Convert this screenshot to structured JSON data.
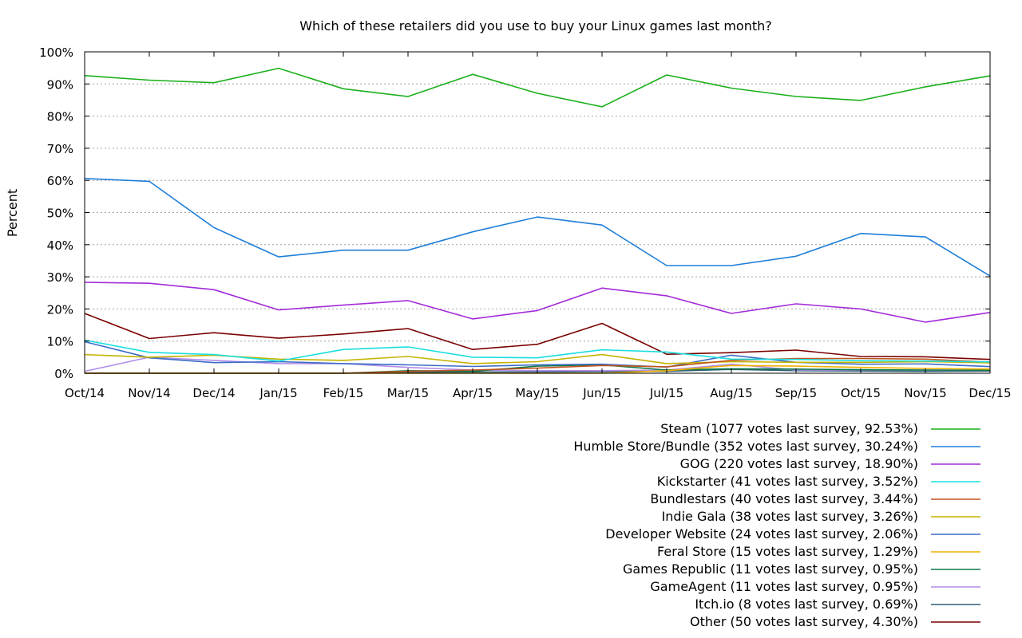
{
  "chart_data": {
    "type": "line",
    "title": "Which of these retailers did you use to buy your Linux games last month?",
    "xlabel": "",
    "ylabel": "Percent",
    "ylim": [
      0,
      100
    ],
    "ytick_values": [
      0,
      10,
      20,
      30,
      40,
      50,
      60,
      70,
      80,
      90,
      100
    ],
    "ytick_labels": [
      "0%",
      "10%",
      "20%",
      "30%",
      "40%",
      "50%",
      "60%",
      "70%",
      "80%",
      "90%",
      "100%"
    ],
    "categories": [
      "Oct/14",
      "Nov/14",
      "Dec/14",
      "Jan/15",
      "Feb/15",
      "Mar/15",
      "Apr/15",
      "May/15",
      "Jun/15",
      "Jul/15",
      "Aug/15",
      "Sep/15",
      "Oct/15",
      "Nov/15",
      "Dec/15"
    ],
    "grid": true,
    "legend_position": "bottom-right",
    "series": [
      {
        "name": "Steam (1077 votes last survey, 92.53%)",
        "color": "#1bb01b",
        "values": [
          92.6,
          91.2,
          90.4,
          94.9,
          88.5,
          86.1,
          93.0,
          87.1,
          82.9,
          92.8,
          88.7,
          86.1,
          84.9,
          89.1,
          92.53
        ]
      },
      {
        "name": "Humble Store/Bundle (352 votes last survey, 30.24%)",
        "color": "#1f7fd9",
        "values": [
          60.6,
          59.7,
          45.3,
          36.2,
          38.3,
          38.3,
          44.0,
          48.6,
          46.1,
          33.5,
          33.5,
          36.4,
          43.5,
          42.4,
          30.24
        ]
      },
      {
        "name": "GOG (220 votes last survey, 18.90%)",
        "color": "#a32bd9",
        "values": [
          28.3,
          28.0,
          26.0,
          19.7,
          21.2,
          22.6,
          16.9,
          19.5,
          26.5,
          24.1,
          18.6,
          21.6,
          20.0,
          15.9,
          18.9
        ]
      },
      {
        "name": "Kickstarter (41 votes last survey, 3.52%)",
        "color": "#1adede",
        "values": [
          10.3,
          6.5,
          5.8,
          3.8,
          7.4,
          8.2,
          5.0,
          4.8,
          7.3,
          6.6,
          4.4,
          4.3,
          3.9,
          3.8,
          3.52
        ]
      },
      {
        "name": "Bundlestars (40 votes last survey, 3.44%)",
        "color": "#c2541e",
        "values": [
          0,
          0,
          0,
          0,
          0,
          0.6,
          1.0,
          1.6,
          2.4,
          2.0,
          4.0,
          4.6,
          4.6,
          4.4,
          3.44
        ]
      },
      {
        "name": "Indie Gala (38 votes last survey, 3.26%)",
        "color": "#c4b400",
        "values": [
          5.8,
          5.0,
          5.6,
          4.4,
          4.0,
          5.2,
          3.0,
          3.6,
          5.8,
          3.0,
          3.6,
          3.4,
          3.4,
          3.6,
          3.26
        ]
      },
      {
        "name": "Developer Website (24 votes last survey, 2.06%)",
        "color": "#3b6dc7",
        "values": [
          9.8,
          4.8,
          3.3,
          3.6,
          3.0,
          2.6,
          2.1,
          2.6,
          2.8,
          1.9,
          5.6,
          3.4,
          2.8,
          2.9,
          2.06
        ]
      },
      {
        "name": "Feral Store (15 votes last survey, 1.29%)",
        "color": "#f0b000",
        "values": [
          0,
          0,
          0,
          0,
          0,
          0,
          0,
          0,
          0,
          0.8,
          2.4,
          2.2,
          1.8,
          1.5,
          1.29
        ]
      },
      {
        "name": "Games Republic (11 votes last survey, 0.95%)",
        "color": "#0e7a48",
        "values": [
          0,
          0,
          0,
          0,
          0,
          0.8,
          0.6,
          2.2,
          2.6,
          1.0,
          1.4,
          1.3,
          1.1,
          1.0,
          0.95
        ]
      },
      {
        "name": "GameAgent (11 votes last survey, 0.95%)",
        "color": "#b28ee8",
        "values": [
          0.6,
          5.0,
          4.0,
          3.0,
          3.0,
          1.8,
          1.0,
          0.8,
          0.8,
          1.0,
          2.8,
          1.0,
          1.0,
          1.0,
          0.95
        ]
      },
      {
        "name": "Itch.io (8 votes last survey, 0.69%)",
        "color": "#2f5f7a",
        "values": [
          0,
          0,
          0,
          0,
          0,
          0.3,
          0.4,
          0.4,
          0.5,
          0.6,
          1.2,
          0.8,
          0.7,
          0.6,
          0.69
        ]
      },
      {
        "name": "Other (50 votes last survey, 4.30%)",
        "color": "#7a0000",
        "values": [
          18.6,
          10.8,
          12.6,
          10.9,
          12.2,
          13.9,
          7.4,
          9.0,
          15.5,
          5.9,
          6.4,
          7.2,
          5.2,
          5.1,
          4.3
        ]
      }
    ]
  }
}
